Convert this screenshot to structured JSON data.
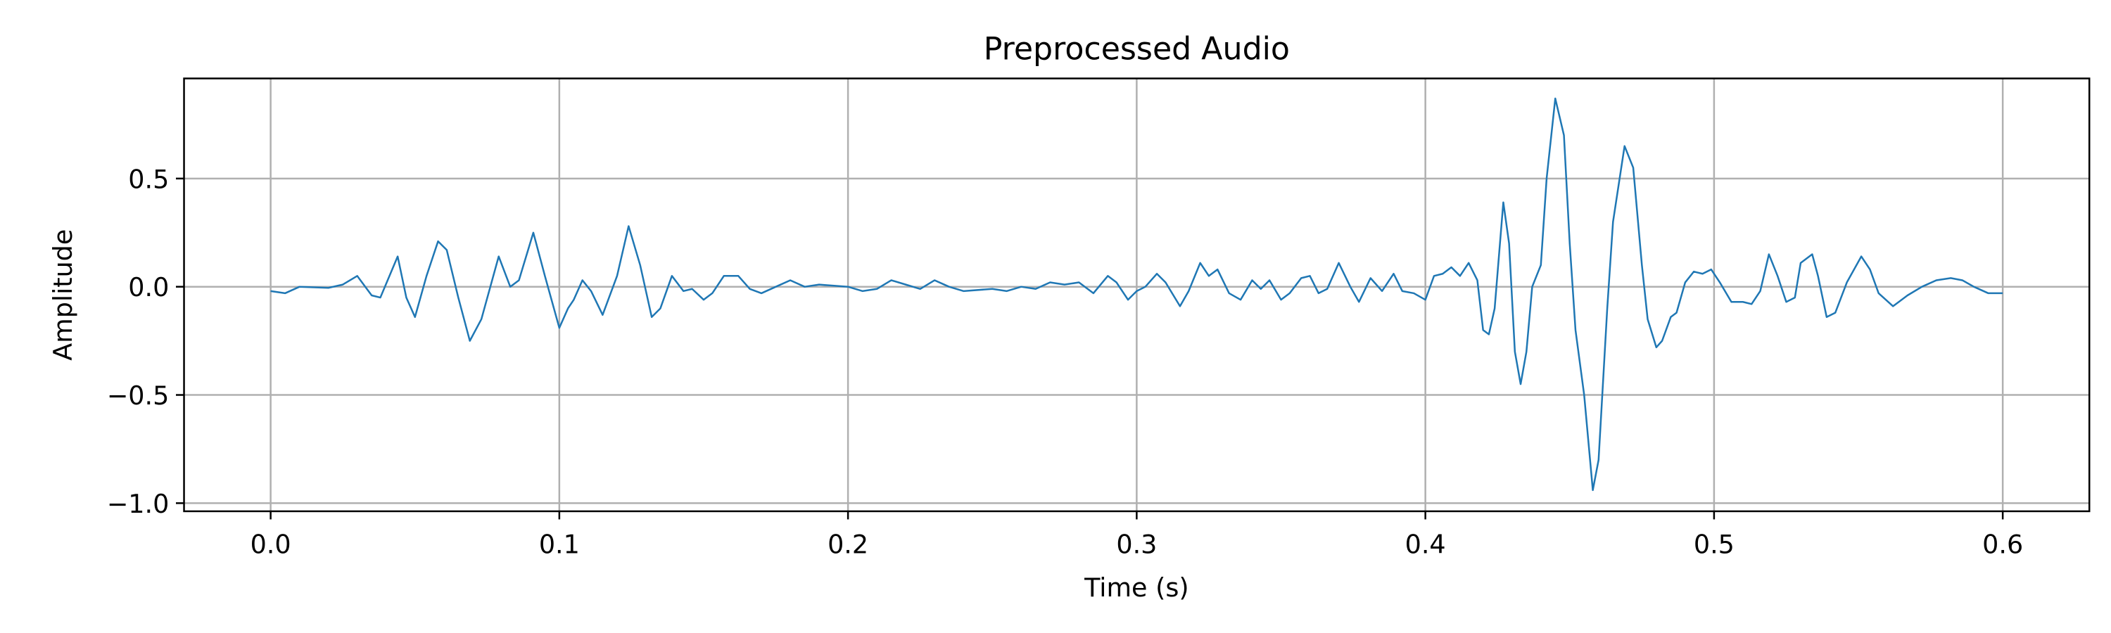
{
  "chart_data": {
    "type": "line",
    "title": "Preprocessed Audio",
    "xlabel": "Time (s)",
    "ylabel": "Amplitude",
    "color": "#1f77b4",
    "grid": true,
    "xlim": [
      -0.03,
      0.63
    ],
    "ylim": [
      -1.0375,
      0.9625
    ],
    "xticks": [
      {
        "value": 0.0,
        "label": "0.0"
      },
      0.1,
      0.2,
      0.3,
      0.4,
      0.5,
      0.6
    ],
    "yticks": [
      {
        "value": -1.0,
        "label": "−1.0"
      },
      {
        "value": -0.5,
        "label": "−0.5"
      },
      {
        "value": 0.0,
        "label": "0.0"
      },
      0.5
    ],
    "x": [
      0,
      0.005,
      0.01,
      0.02,
      0.025,
      0.03,
      0.035,
      0.038,
      0.044,
      0.047,
      0.05,
      0.054,
      0.058,
      0.061,
      0.065,
      0.069,
      0.073,
      0.079,
      0.083,
      0.086,
      0.091,
      0.095,
      0.1,
      0.103,
      0.105,
      0.108,
      0.111,
      0.115,
      0.12,
      0.124,
      0.128,
      0.132,
      0.135,
      0.139,
      0.143,
      0.146,
      0.15,
      0.153,
      0.157,
      0.162,
      0.166,
      0.17,
      0.175,
      0.18,
      0.185,
      0.19,
      0.2,
      0.205,
      0.21,
      0.215,
      0.22,
      0.225,
      0.23,
      0.235,
      0.24,
      0.25,
      0.255,
      0.26,
      0.265,
      0.27,
      0.275,
      0.28,
      0.285,
      0.29,
      0.293,
      0.297,
      0.3,
      0.303,
      0.307,
      0.31,
      0.315,
      0.318,
      0.322,
      0.325,
      0.328,
      0.332,
      0.336,
      0.34,
      0.343,
      0.346,
      0.35,
      0.353,
      0.357,
      0.36,
      0.363,
      0.366,
      0.37,
      0.374,
      0.377,
      0.381,
      0.385,
      0.389,
      0.392,
      0.396,
      0.4,
      0.403,
      0.406,
      0.409,
      0.412,
      0.415,
      0.418,
      0.42,
      0.422,
      0.424,
      0.427,
      0.429,
      0.431,
      0.433,
      0.435,
      0.437,
      0.44,
      0.442,
      0.445,
      0.448,
      0.45,
      0.452,
      0.455,
      0.458,
      0.46,
      0.463,
      0.465,
      0.469,
      0.472,
      0.475,
      0.477,
      0.48,
      0.482,
      0.485,
      0.487,
      0.49,
      0.493,
      0.496,
      0.499,
      0.502,
      0.506,
      0.51,
      0.513,
      0.516,
      0.519,
      0.522,
      0.525,
      0.528,
      0.53,
      0.534,
      0.536,
      0.539,
      0.542,
      0.546,
      0.551,
      0.554,
      0.557,
      0.562,
      0.567,
      0.572,
      0.577,
      0.582,
      0.586,
      0.59,
      0.595,
      0.6
    ],
    "values": [
      -0.02,
      -0.03,
      0.0,
      -0.005,
      0.01,
      0.05,
      -0.04,
      -0.05,
      0.14,
      -0.05,
      -0.14,
      0.05,
      0.21,
      0.17,
      -0.05,
      -0.25,
      -0.15,
      0.14,
      0.0,
      0.03,
      0.25,
      0.05,
      -0.19,
      -0.1,
      -0.06,
      0.03,
      -0.02,
      -0.13,
      0.05,
      0.28,
      0.1,
      -0.14,
      -0.1,
      0.05,
      -0.02,
      -0.01,
      -0.06,
      -0.03,
      0.05,
      0.05,
      -0.01,
      -0.03,
      0.0,
      0.03,
      0.0,
      0.01,
      0.0,
      -0.02,
      -0.01,
      0.03,
      0.01,
      -0.01,
      0.03,
      0.0,
      -0.02,
      -0.01,
      -0.02,
      0.0,
      -0.01,
      0.02,
      0.01,
      0.02,
      -0.03,
      0.05,
      0.02,
      -0.06,
      -0.02,
      0.0,
      0.06,
      0.02,
      -0.09,
      -0.02,
      0.11,
      0.05,
      0.08,
      -0.03,
      -0.06,
      0.03,
      -0.01,
      0.03,
      -0.06,
      -0.03,
      0.04,
      0.05,
      -0.03,
      -0.01,
      0.11,
      0.0,
      -0.07,
      0.04,
      -0.02,
      0.06,
      -0.02,
      -0.03,
      -0.06,
      0.05,
      0.06,
      0.09,
      0.05,
      0.11,
      0.03,
      -0.2,
      -0.22,
      -0.1,
      0.39,
      0.2,
      -0.3,
      -0.45,
      -0.3,
      0.0,
      0.1,
      0.5,
      0.87,
      0.7,
      0.2,
      -0.2,
      -0.5,
      -0.94,
      -0.8,
      -0.1,
      0.3,
      0.65,
      0.55,
      0.1,
      -0.15,
      -0.28,
      -0.25,
      -0.14,
      -0.12,
      0.02,
      0.07,
      0.06,
      0.08,
      0.02,
      -0.07,
      -0.07,
      -0.08,
      -0.02,
      0.15,
      0.05,
      -0.07,
      -0.05,
      0.11,
      0.15,
      0.05,
      -0.14,
      -0.12,
      0.02,
      0.14,
      0.08,
      -0.03,
      -0.09,
      -0.04,
      0.0,
      0.03,
      0.04,
      0.03,
      0.0,
      -0.03,
      -0.03
    ]
  }
}
